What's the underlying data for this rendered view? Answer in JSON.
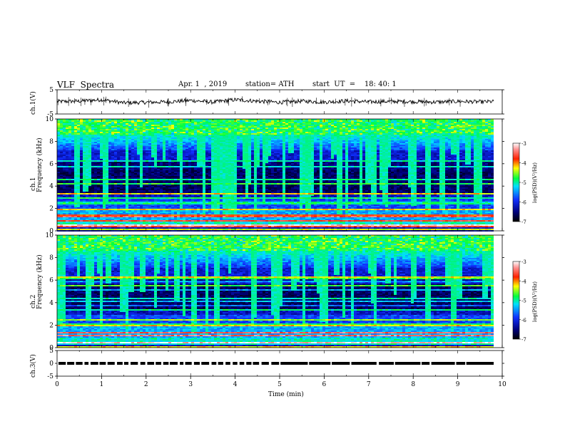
{
  "header": {
    "title": "VLF  Spectra",
    "date": "Apr. 1  , 2019",
    "station": "station= ATH",
    "start": "start  UT  =    18: 40: 1"
  },
  "chart_data": [
    {
      "type": "line",
      "panel": "ch1-waveform",
      "ylabel": "ch.1(V)",
      "ylim": [
        -5,
        5
      ],
      "yticks": [
        "5",
        "-5"
      ],
      "x": [
        0,
        0.5,
        1,
        1.5,
        2,
        2.5,
        3,
        3.5,
        4,
        4.5,
        5,
        5.5,
        6,
        6.5,
        7,
        7.5,
        8,
        8.5,
        9,
        9.5,
        9.8
      ],
      "values": [
        0.1,
        0.3,
        0.9,
        -0.4,
        -0.2,
        0.0,
        0.6,
        -0.1,
        0.9,
        0.3,
        -0.2,
        0.3,
        -0.1,
        0.4,
        0.0,
        0.2,
        0.1,
        -0.1,
        0.2,
        0.0,
        0.1
      ]
    },
    {
      "type": "heatmap",
      "panel": "ch1-spectrogram",
      "ylabel": "Frequency  (kHz)",
      "chlabel": "ch.1",
      "ylim": [
        0,
        10
      ],
      "yticks": [
        "0",
        "2",
        "4",
        "6",
        "8",
        "10"
      ],
      "colorbar": {
        "label": "log(PSD)(V²/Hz)",
        "range": [
          -7,
          -3
        ],
        "ticks": [
          "-3",
          "-4",
          "-5",
          "-6",
          "-7"
        ]
      }
    },
    {
      "type": "heatmap",
      "panel": "ch2-spectrogram",
      "ylabel": "Frequency  (kHz)",
      "chlabel": "ch.2",
      "ylim": [
        0,
        10
      ],
      "yticks": [
        "0",
        "2",
        "4",
        "6",
        "8",
        "10"
      ],
      "colorbar": {
        "label": "log(PSD)(V²/Hz)",
        "range": [
          -7,
          -3
        ],
        "ticks": [
          "-3",
          "-4",
          "-5",
          "-6",
          "-7"
        ]
      }
    },
    {
      "type": "line",
      "panel": "ch3-trace",
      "ylabel": "ch.3(V)",
      "ylim": [
        -5,
        5
      ],
      "yticks": [
        "5",
        "0",
        "-5"
      ],
      "level": 0
    }
  ],
  "xaxis": {
    "label": "Time  (min)",
    "xlim": [
      0,
      10
    ],
    "ticks": [
      "0",
      "1",
      "2",
      "3",
      "4",
      "5",
      "6",
      "7",
      "8",
      "9",
      "10"
    ]
  }
}
